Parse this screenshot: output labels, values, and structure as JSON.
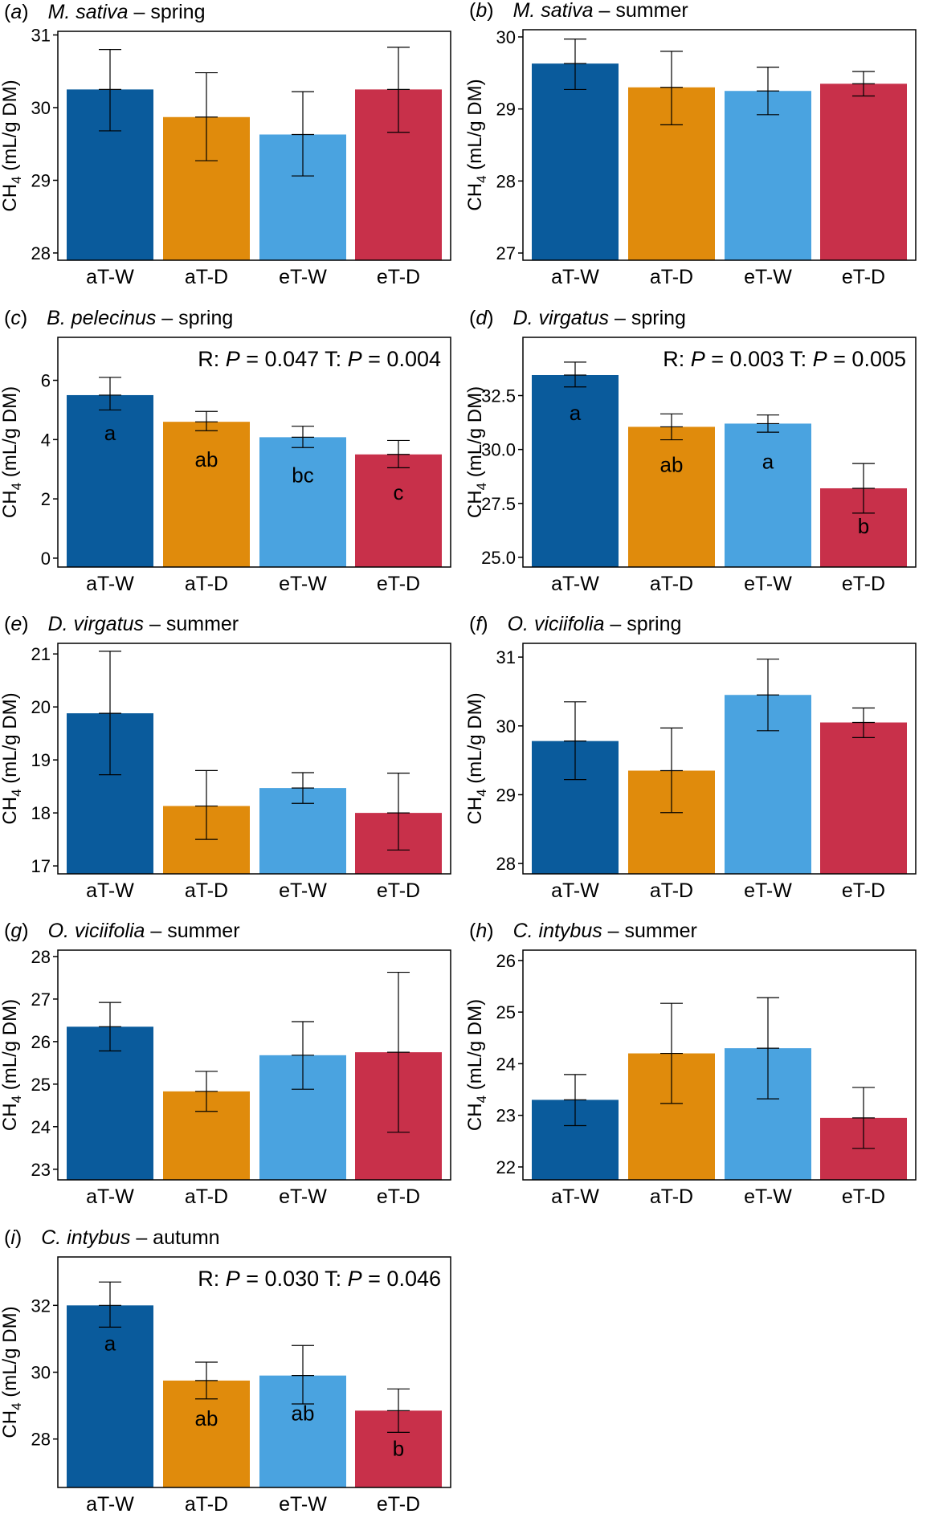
{
  "colors": {
    "aT-W": "#0a5b9c",
    "aT-D": "#e08b0c",
    "eT-W": "#4aa3e0",
    "eT-D": "#c8304a",
    "frame": "#000000",
    "error_bar": "#000000"
  },
  "chart_data": [
    {
      "type": "bar",
      "panel_label": "a",
      "species": "M. sativa",
      "season": "spring",
      "categories": [
        "aT-W",
        "aT-D",
        "eT-W",
        "eT-D"
      ],
      "values": [
        30.25,
        29.87,
        29.63,
        30.25
      ],
      "error_low": [
        29.68,
        29.27,
        29.06,
        29.66
      ],
      "error_high": [
        30.8,
        30.48,
        30.22,
        30.83
      ],
      "ylabel": "CH4 (mL/g DM)",
      "ylim": [
        27.9,
        31.05
      ],
      "yticks": [
        28,
        29,
        30,
        31
      ],
      "annotation": null,
      "letters": null
    },
    {
      "type": "bar",
      "panel_label": "b",
      "species": "M. sativa",
      "season": "summer",
      "categories": [
        "aT-W",
        "aT-D",
        "eT-W",
        "eT-D"
      ],
      "values": [
        29.63,
        29.3,
        29.25,
        29.35
      ],
      "error_low": [
        29.27,
        28.78,
        28.92,
        29.18
      ],
      "error_high": [
        29.97,
        29.8,
        29.58,
        29.52
      ],
      "ylabel": "CH4 (mL/g DM)",
      "ylim": [
        26.9,
        30.1
      ],
      "yticks": [
        27,
        28,
        29,
        30
      ],
      "annotation": null,
      "letters": null
    },
    {
      "type": "bar",
      "panel_label": "c",
      "species": "B. pelecinus",
      "season": "spring",
      "categories": [
        "aT-W",
        "aT-D",
        "eT-W",
        "eT-D"
      ],
      "values": [
        5.5,
        4.6,
        4.08,
        3.5
      ],
      "error_low": [
        5.0,
        4.3,
        3.73,
        3.05
      ],
      "error_high": [
        6.1,
        4.95,
        4.45,
        3.97
      ],
      "ylabel": "CH4 (mL/g DM)",
      "ylim": [
        -0.3,
        7.45
      ],
      "yticks": [
        0,
        2,
        4,
        6
      ],
      "annotation": {
        "prefix_r": "R: ",
        "p_r": "P",
        "value_r": " = 0.047 T: ",
        "p_t": "P",
        "value_t": " = 0.004"
      },
      "letters": [
        "a",
        "ab",
        "bc",
        "c"
      ]
    },
    {
      "type": "bar",
      "panel_label": "d",
      "species": "D. virgatus",
      "season": "spring",
      "categories": [
        "aT-W",
        "aT-D",
        "eT-W",
        "eT-D"
      ],
      "values": [
        33.45,
        31.05,
        31.2,
        28.2
      ],
      "error_low": [
        32.9,
        30.45,
        30.8,
        27.05
      ],
      "error_high": [
        34.05,
        31.65,
        31.6,
        29.35
      ],
      "ylabel": "CH4 (mL/g DM)",
      "ylim": [
        24.55,
        35.2
      ],
      "yticks": [
        25.0,
        27.5,
        30.0,
        32.5
      ],
      "annotation": {
        "prefix_r": "R: ",
        "p_r": "P",
        "value_r": " = 0.003 T: ",
        "p_t": "P",
        "value_t": " = 0.005"
      },
      "letters": [
        "a",
        "ab",
        "a",
        "b"
      ]
    },
    {
      "type": "bar",
      "panel_label": "e",
      "species": "D. virgatus",
      "season": "summer",
      "categories": [
        "aT-W",
        "aT-D",
        "eT-W",
        "eT-D"
      ],
      "values": [
        19.88,
        18.13,
        18.47,
        18.0
      ],
      "error_low": [
        18.72,
        17.5,
        18.18,
        17.3
      ],
      "error_high": [
        21.05,
        18.8,
        18.76,
        18.75
      ],
      "ylabel": "CH4 (mL/g DM)",
      "ylim": [
        16.85,
        21.2
      ],
      "yticks": [
        17,
        18,
        19,
        20,
        21
      ],
      "annotation": null,
      "letters": null
    },
    {
      "type": "bar",
      "panel_label": "f",
      "species": "O. viciifolia",
      "season": "spring",
      "categories": [
        "aT-W",
        "aT-D",
        "eT-W",
        "eT-D"
      ],
      "values": [
        29.78,
        29.35,
        30.45,
        30.05
      ],
      "error_low": [
        29.22,
        28.74,
        29.93,
        29.83
      ],
      "error_high": [
        30.35,
        29.97,
        30.97,
        30.26
      ],
      "ylabel": "CH4 (mL/g DM)",
      "ylim": [
        27.85,
        31.2
      ],
      "yticks": [
        28,
        29,
        30,
        31
      ],
      "annotation": null,
      "letters": null
    },
    {
      "type": "bar",
      "panel_label": "g",
      "species": "O. viciifolia",
      "season": "summer",
      "categories": [
        "aT-W",
        "aT-D",
        "eT-W",
        "eT-D"
      ],
      "values": [
        26.35,
        24.83,
        25.68,
        25.75
      ],
      "error_low": [
        25.78,
        24.36,
        24.88,
        23.87
      ],
      "error_high": [
        26.92,
        25.3,
        26.47,
        27.63
      ],
      "ylabel": "CH4 (mL/g DM)",
      "ylim": [
        22.75,
        28.15
      ],
      "yticks": [
        23,
        24,
        25,
        26,
        27,
        28
      ],
      "annotation": null,
      "letters": null
    },
    {
      "type": "bar",
      "panel_label": "h",
      "species": "C. intybus",
      "season": "summer",
      "categories": [
        "aT-W",
        "aT-D",
        "eT-W",
        "eT-D"
      ],
      "values": [
        23.3,
        24.2,
        24.3,
        22.95
      ],
      "error_low": [
        22.8,
        23.23,
        23.32,
        22.36
      ],
      "error_high": [
        23.79,
        25.17,
        25.28,
        23.54
      ],
      "ylabel": "CH4 (mL/g DM)",
      "ylim": [
        21.75,
        26.2
      ],
      "yticks": [
        22,
        23,
        24,
        25,
        26
      ],
      "annotation": null,
      "letters": null
    },
    {
      "type": "bar",
      "panel_label": "i",
      "species": "C. intybus",
      "season": "autumn",
      "categories": [
        "aT-W",
        "aT-D",
        "eT-W",
        "eT-D"
      ],
      "values": [
        32.0,
        29.75,
        29.9,
        28.85
      ],
      "error_low": [
        31.35,
        29.2,
        29.05,
        28.2
      ],
      "error_high": [
        32.7,
        30.3,
        30.8,
        29.5
      ],
      "ylabel": "CH4 (mL/g DM)",
      "ylim": [
        26.55,
        33.45
      ],
      "yticks": [
        28,
        30,
        32
      ],
      "annotation": {
        "prefix_r": "R: ",
        "p_r": "P",
        "value_r": " = 0.030 T: ",
        "p_t": "P",
        "value_t": " = 0.046"
      },
      "letters": [
        "a",
        "ab",
        "ab",
        "b"
      ]
    }
  ]
}
